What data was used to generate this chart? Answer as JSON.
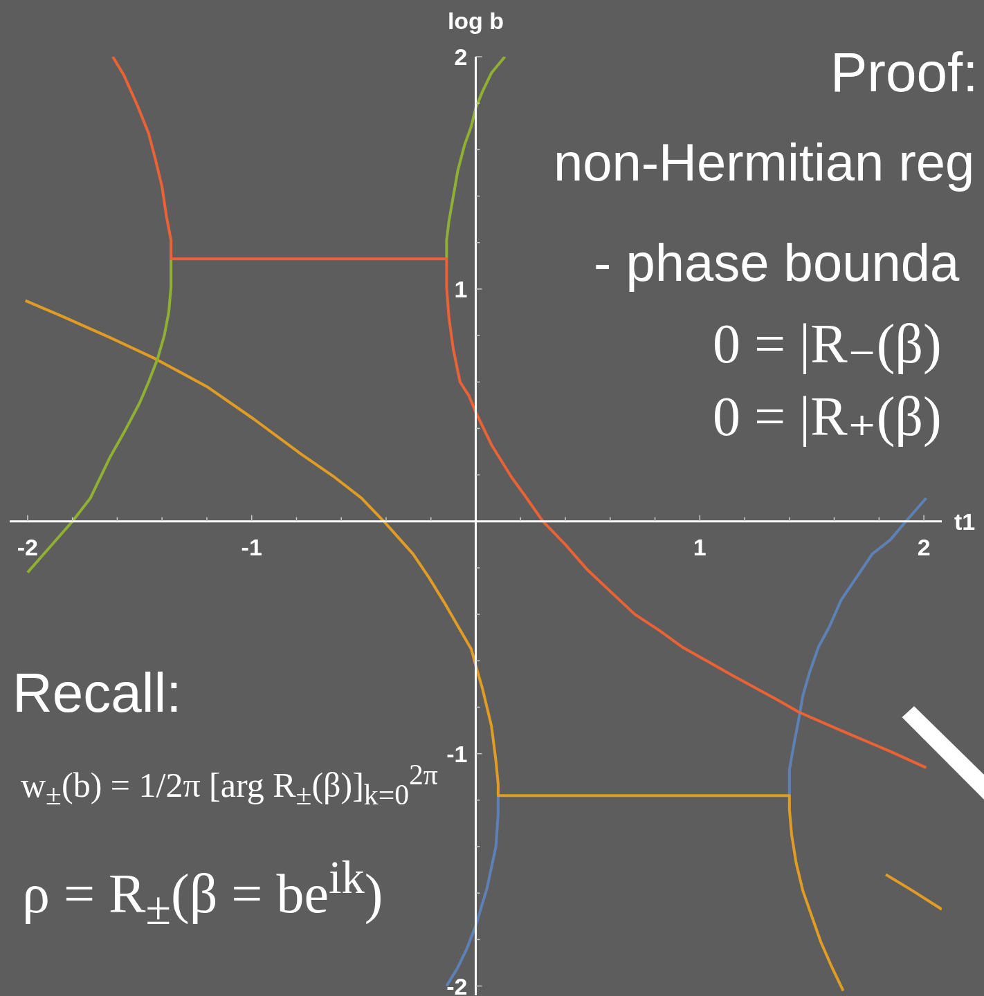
{
  "chart_data": {
    "type": "line",
    "xlabel": "t1",
    "ylabel": "log b",
    "marker": "none",
    "xlim": [
      -2.08,
      2.08
    ],
    "ylim": [
      -2.04,
      2
    ],
    "xticks": [
      -2,
      {
        "value": -1.8,
        "label": null
      },
      {
        "value": -1.6,
        "label": null
      },
      {
        "value": -1.4,
        "label": null
      },
      {
        "value": -1.2,
        "label": null
      },
      -1,
      {
        "value": -0.8,
        "label": null
      },
      {
        "value": -0.6,
        "label": null
      },
      {
        "value": -0.4,
        "label": null
      },
      {
        "value": -0.2,
        "label": null
      },
      {
        "value": 0.2,
        "label": null
      },
      {
        "value": 0.4,
        "label": null
      },
      {
        "value": 0.6,
        "label": null
      },
      {
        "value": 0.8,
        "label": null
      },
      1,
      {
        "value": 1.2,
        "label": null
      },
      {
        "value": 1.4,
        "label": null
      },
      {
        "value": 1.6,
        "label": null
      },
      {
        "value": 1.8,
        "label": null
      },
      2
    ],
    "yticks": [
      -2,
      {
        "value": -1.8,
        "label": null
      },
      {
        "value": -1.6,
        "label": null
      },
      {
        "value": -1.4,
        "label": null
      },
      {
        "value": -1.2,
        "label": null
      },
      -1,
      {
        "value": -0.8,
        "label": null
      },
      {
        "value": -0.6,
        "label": null
      },
      {
        "value": -0.4,
        "label": null
      },
      {
        "value": -0.2,
        "label": null
      },
      {
        "value": 0.2,
        "label": null
      },
      {
        "value": 0.4,
        "label": null
      },
      {
        "value": 0.6,
        "label": null
      },
      {
        "value": 0.8,
        "label": null
      },
      1,
      {
        "value": 1.2,
        "label": null
      },
      {
        "value": 1.4,
        "label": null
      },
      {
        "value": 1.6,
        "label": null
      },
      {
        "value": 1.8,
        "label": null
      },
      2
    ],
    "series": [
      {
        "color": "#5e81b5",
        "x": [
          2.01,
          1.92,
          1.85,
          1.77,
          1.7,
          1.63,
          1.58,
          1.53,
          1.49,
          1.46,
          1.44,
          1.42,
          1.4,
          1.4,
          null,
          0.1,
          0.1,
          0.09,
          0.07,
          0.05,
          0,
          -0.04,
          -0.08,
          -0.13
        ],
        "values": [
          0.1,
          0,
          -0.08,
          -0.14,
          -0.24,
          -0.34,
          -0.45,
          -0.54,
          -0.65,
          -0.75,
          -0.86,
          -0.96,
          -1.07,
          -1.18,
          null,
          -1.18,
          -1.26,
          -1.4,
          -1.49,
          -1.58,
          -1.74,
          -1.84,
          -1.92,
          -2
        ]
      },
      {
        "color": "#e19c24",
        "x": [
          -2.01,
          -1.84,
          -1.63,
          -1.43,
          -1.2,
          -0.99,
          -0.78,
          -0.63,
          -0.51,
          -0.41,
          -0.28,
          -0.21,
          -0.14,
          -0.08,
          -0.02,
          0,
          0.03,
          0.05,
          0.07,
          0.09,
          0.1,
          0.1,
          1.4,
          1.4,
          1.41,
          1.43,
          1.46,
          1.5,
          1.54,
          1.59,
          1.64,
          null,
          1.83,
          1.95,
          2.08
        ],
        "values": [
          0.95,
          0.88,
          0.79,
          0.7,
          0.58,
          0.44,
          0.29,
          0.19,
          0.1,
          0,
          -0.14,
          -0.24,
          -0.35,
          -0.45,
          -0.55,
          -0.62,
          -0.72,
          -0.8,
          -0.88,
          -1.03,
          -1.13,
          -1.18,
          -1.18,
          -1.24,
          -1.35,
          -1.47,
          -1.59,
          -1.7,
          -1.81,
          -1.92,
          -2.02,
          null,
          -1.52,
          -1.59,
          -1.67
        ]
      },
      {
        "color": "#8fb032",
        "x": [
          0.13,
          0.07,
          0.03,
          0,
          -0.02,
          -0.05,
          -0.08,
          -0.1,
          -0.12,
          -0.13,
          -0.13,
          null,
          -1.36,
          -1.36,
          -1.37,
          -1.39,
          -1.42,
          -1.46,
          -1.5,
          -1.56,
          -1.63,
          -1.72,
          -1.8,
          -1.9,
          -2
        ],
        "values": [
          2,
          1.93,
          1.85,
          1.78,
          1.7,
          1.62,
          1.51,
          1.4,
          1.29,
          1.21,
          1.13,
          null,
          1.13,
          1.01,
          0.9,
          0.8,
          0.7,
          0.6,
          0.51,
          0.4,
          0.28,
          0.1,
          0,
          -0.11,
          -0.22
        ]
      },
      {
        "color": "#eb6235",
        "x": [
          -1.62,
          -1.57,
          -1.51,
          -1.46,
          -1.43,
          -1.4,
          -1.38,
          -1.36,
          -1.36,
          -0.13,
          -0.13,
          -0.12,
          -0.1,
          -0.07,
          -0.03,
          0,
          0.07,
          0.16,
          0.22,
          0.3,
          0.4,
          0.5,
          0.61,
          0.71,
          0.82,
          0.92,
          1.03,
          1.14,
          1.35,
          1.44,
          1.63,
          1.85,
          2.01
        ],
        "values": [
          2,
          1.92,
          1.79,
          1.67,
          1.56,
          1.44,
          1.31,
          1.21,
          1.13,
          1.13,
          1.01,
          0.88,
          0.74,
          0.6,
          0.54,
          0.47,
          0.33,
          0.19,
          0.11,
          0,
          -0.1,
          -0.21,
          -0.31,
          -0.4,
          -0.47,
          -0.54,
          -0.6,
          -0.66,
          -0.77,
          -0.82,
          -0.9,
          -0.99,
          -1.06
        ]
      }
    ],
    "annotations": [
      "Proof:",
      "non-Hermitian reg",
      "- phase bounda",
      "0 = |R₋(β)",
      "0 = |R₊(β)",
      "Recall:",
      "w$_{±}$(b) = 1/2π [arg R$_{±}$(β)]$_{k=0}$$^{2π}$",
      "ρ = R$_{±}$(β = be$^{ik}$)"
    ]
  }
}
